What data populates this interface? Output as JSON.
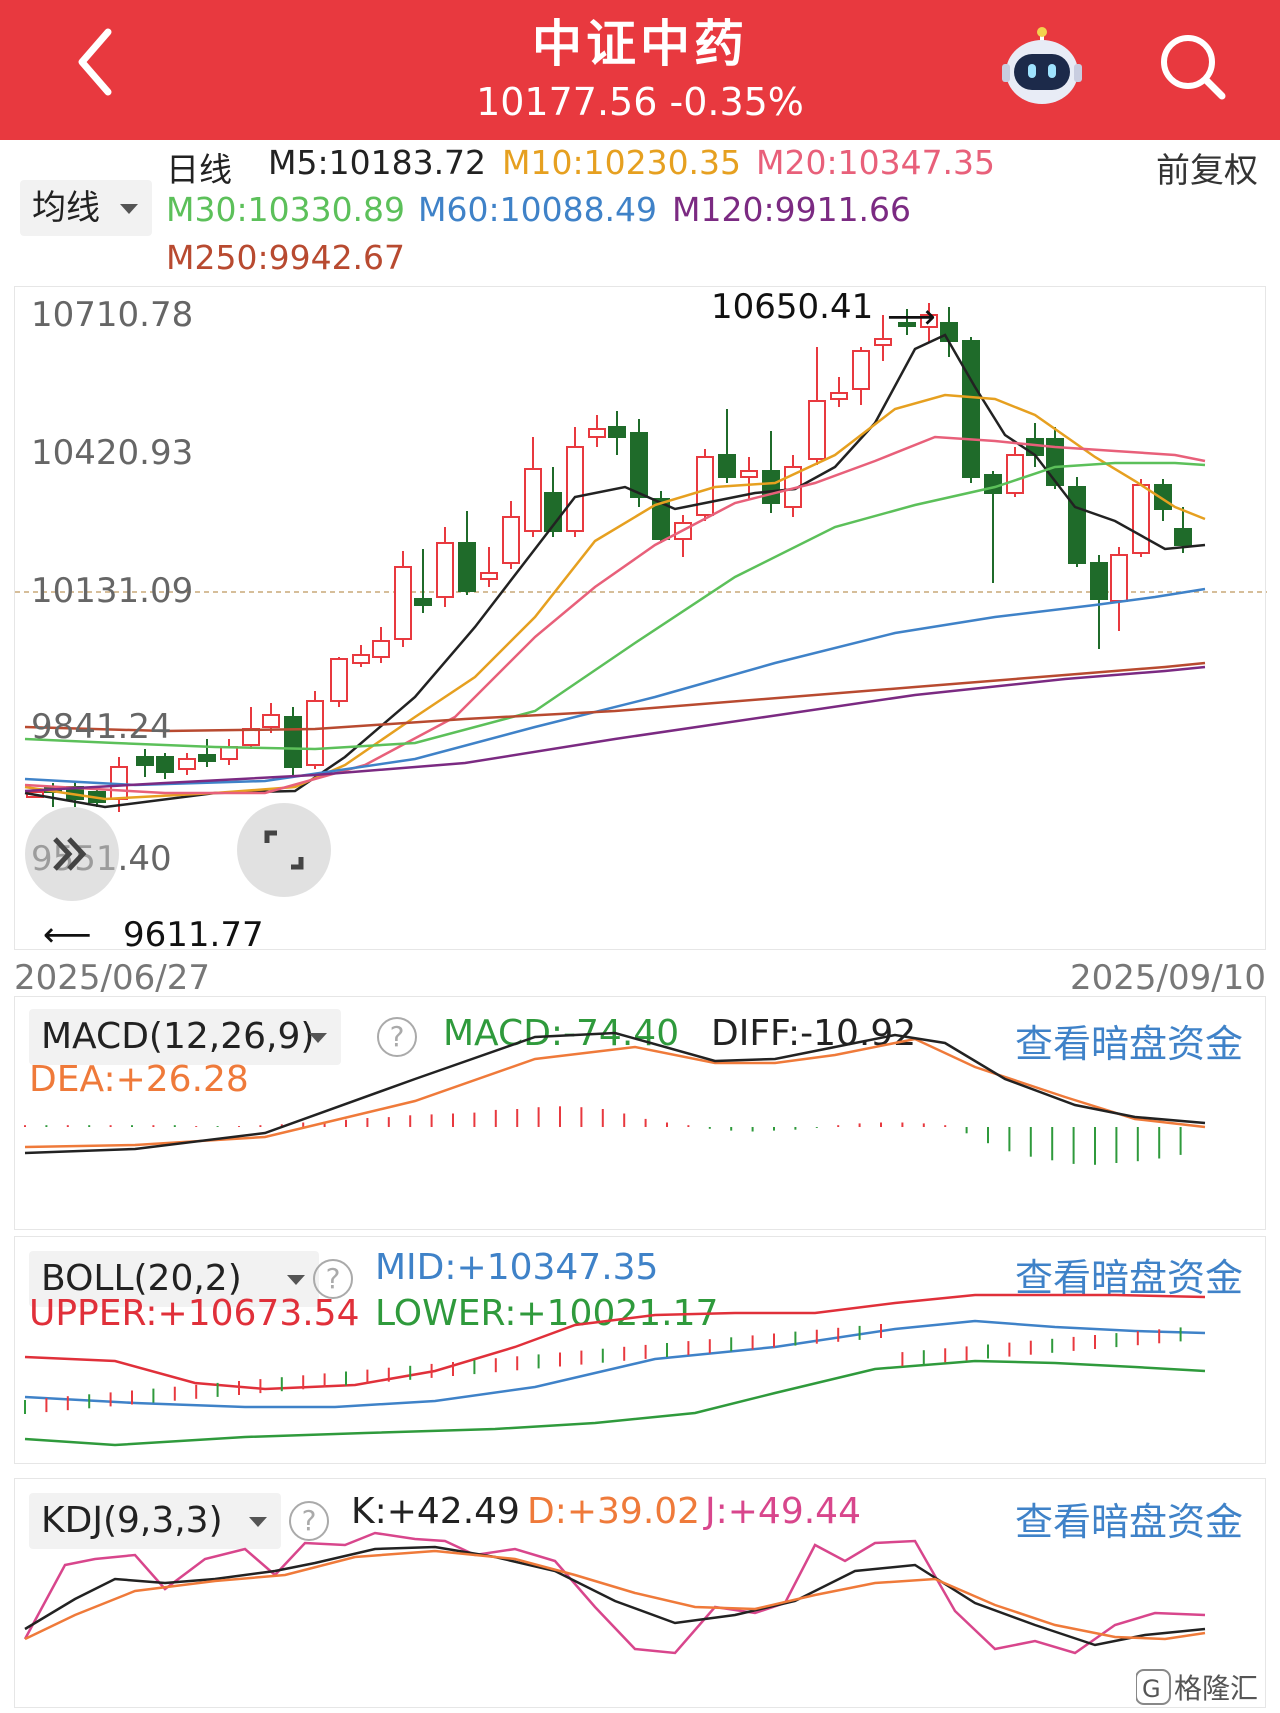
{
  "header": {
    "title": "中证中药",
    "price": "10177.56",
    "change": "-0.35%"
  },
  "ma_legend": {
    "dropdown": "均线",
    "period": "日线",
    "adjust": "前复权",
    "items": [
      {
        "label": "M5:10183.72",
        "color": "#222222"
      },
      {
        "label": "M10:10230.35",
        "color": "#e6a020"
      },
      {
        "label": "M20:10347.35",
        "color": "#e8607a"
      },
      {
        "label": "M30:10330.89",
        "color": "#5cc05a"
      },
      {
        "label": "M60:10088.49",
        "color": "#3f82c8"
      },
      {
        "label": "M120:9911.66",
        "color": "#7b2a82"
      },
      {
        "label": "M250:9942.67",
        "color": "#b84a30"
      }
    ]
  },
  "main_chart": {
    "y_labels": [
      "10710.78",
      "10420.93",
      "10131.09",
      "9841.24",
      "9551.40"
    ],
    "high_label": "10650.41",
    "low_label": "9611.77",
    "date_start": "2025/06/27",
    "date_end": "2025/09/10",
    "colors": {
      "up": "#e8393f",
      "down": "#1f6b2a"
    }
  },
  "macd": {
    "dropdown": "MACD(12,26,9)",
    "macd": "MACD:-74.40",
    "diff": "DIFF:-10.92",
    "dea": "DEA:+26.28",
    "link": "查看暗盘资金"
  },
  "boll": {
    "dropdown": "BOLL(20,2)",
    "mid": "MID:+10347.35",
    "upper": "UPPER:+10673.54",
    "lower": "LOWER:+10021.17",
    "link": "查看暗盘资金"
  },
  "kdj": {
    "dropdown": "KDJ(9,3,3)",
    "k": "K:+42.49",
    "d": "D:+39.02",
    "j": "J:+49.44",
    "link": "查看暗盘资金"
  },
  "watermark": "格隆汇",
  "help_glyph": "?",
  "icons": [
    "back-arrow-icon",
    "robot-icon",
    "search-icon",
    "expand-icon",
    "collapse-icon"
  ]
}
